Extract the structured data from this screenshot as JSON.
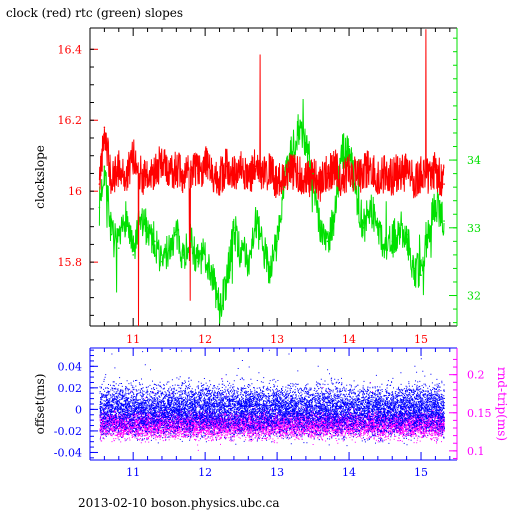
{
  "page": {
    "title": "clock (red) rtc (green) slopes",
    "footer": "2013-02-10  boson.physics.ubc.ca"
  },
  "colors": {
    "clock": "#ff0000",
    "rtc": "#00e000",
    "offset": "#0000ff",
    "rndtrip": "#ff00ff",
    "frame": "#000000",
    "axis_red": "#ff0000",
    "axis_green": "#00e000",
    "axis_blue": "#0000ff",
    "axis_magenta": "#ff00ff"
  },
  "chart_data": [
    {
      "type": "line",
      "name": "slopes",
      "title": "clock (red) rtc (green) slopes",
      "ylabel": "clockslope",
      "xlim": [
        10.4,
        15.5
      ],
      "ylim": [
        15.62,
        16.46
      ],
      "y2lim": [
        31.55,
        35.95
      ],
      "x_ticks": [
        "11",
        "12",
        "13",
        "14",
        "15"
      ],
      "y_ticks": [
        "15.8",
        "16",
        "16.2",
        "16.4"
      ],
      "y2_ticks": [
        "32",
        "33",
        "34"
      ],
      "grid": false,
      "series": [
        {
          "name": "clock",
          "axis": "left",
          "x": [
            10.53,
            10.6,
            10.7,
            10.8,
            10.9,
            11.0,
            11.1,
            11.2,
            11.3,
            11.4,
            11.5,
            11.6,
            11.7,
            11.8,
            11.9,
            12.0,
            12.1,
            12.2,
            12.3,
            12.4,
            12.5,
            12.6,
            12.7,
            12.8,
            12.9,
            13.0,
            13.1,
            13.2,
            13.3,
            13.4,
            13.5,
            13.6,
            13.7,
            13.8,
            13.9,
            14.0,
            14.1,
            14.2,
            14.3,
            14.4,
            14.5,
            14.6,
            14.7,
            14.8,
            14.9,
            15.0,
            15.1,
            15.2,
            15.32
          ],
          "values": [
            16.02,
            16.18,
            16.02,
            16.07,
            16.03,
            16.1,
            16.05,
            16.03,
            16.06,
            16.08,
            16.05,
            16.07,
            16.03,
            16.06,
            16.05,
            16.08,
            16.05,
            16.04,
            16.07,
            16.05,
            16.06,
            16.03,
            16.07,
            16.04,
            16.06,
            16.02,
            16.04,
            16.06,
            16.05,
            16.03,
            16.04,
            16.02,
            16.05,
            16.07,
            16.03,
            16.06,
            16.04,
            16.05,
            16.07,
            16.03,
            16.05,
            16.04,
            16.06,
            16.05,
            16.03,
            16.05,
            16.04,
            16.06,
            16.02
          ]
        },
        {
          "name": "rtc",
          "axis": "right",
          "x": [
            10.53,
            10.6,
            10.7,
            10.8,
            10.9,
            11.0,
            11.1,
            11.2,
            11.3,
            11.4,
            11.5,
            11.6,
            11.7,
            11.8,
            11.9,
            12.0,
            12.1,
            12.2,
            12.3,
            12.4,
            12.5,
            12.6,
            12.7,
            12.8,
            12.9,
            13.0,
            13.1,
            13.2,
            13.3,
            13.4,
            13.5,
            13.6,
            13.7,
            13.8,
            13.9,
            14.0,
            14.1,
            14.2,
            14.3,
            14.4,
            14.5,
            14.6,
            14.7,
            14.8,
            14.9,
            15.0,
            15.1,
            15.2,
            15.32
          ],
          "values": [
            33.3,
            33.9,
            32.9,
            32.7,
            33.2,
            32.6,
            33.1,
            33.0,
            32.8,
            32.5,
            32.7,
            32.9,
            32.6,
            32.8,
            32.5,
            32.6,
            32.3,
            31.8,
            32.2,
            33.0,
            32.6,
            32.5,
            33.1,
            32.7,
            32.4,
            32.8,
            33.6,
            34.1,
            34.5,
            34.2,
            33.8,
            33.0,
            32.8,
            33.2,
            34.1,
            34.2,
            33.5,
            33.0,
            33.3,
            33.0,
            32.7,
            32.8,
            33.0,
            32.9,
            32.4,
            32.3,
            32.9,
            33.4,
            33.1
          ]
        }
      ]
    },
    {
      "type": "scatter",
      "name": "offset and round-trip",
      "ylabel": "offset(ms)",
      "y2label": "rnd-trip(ms)",
      "xlim": [
        10.4,
        15.5
      ],
      "ylim": [
        -0.047,
        0.057
      ],
      "y2lim": [
        0.088,
        0.235
      ],
      "x_ticks": [
        "11",
        "12",
        "13",
        "14",
        "15"
      ],
      "y_ticks": [
        "-0.04",
        "-0.02",
        "0",
        "0.02",
        "0.04"
      ],
      "y2_ticks": [
        "0.1",
        "0.15",
        "0.2"
      ],
      "grid": false,
      "series": [
        {
          "name": "offset",
          "axis": "left",
          "center": 0.0,
          "spread": 0.032
        },
        {
          "name": "rnd-trip",
          "axis": "right",
          "center": 0.135,
          "spread": 0.025
        }
      ]
    }
  ]
}
